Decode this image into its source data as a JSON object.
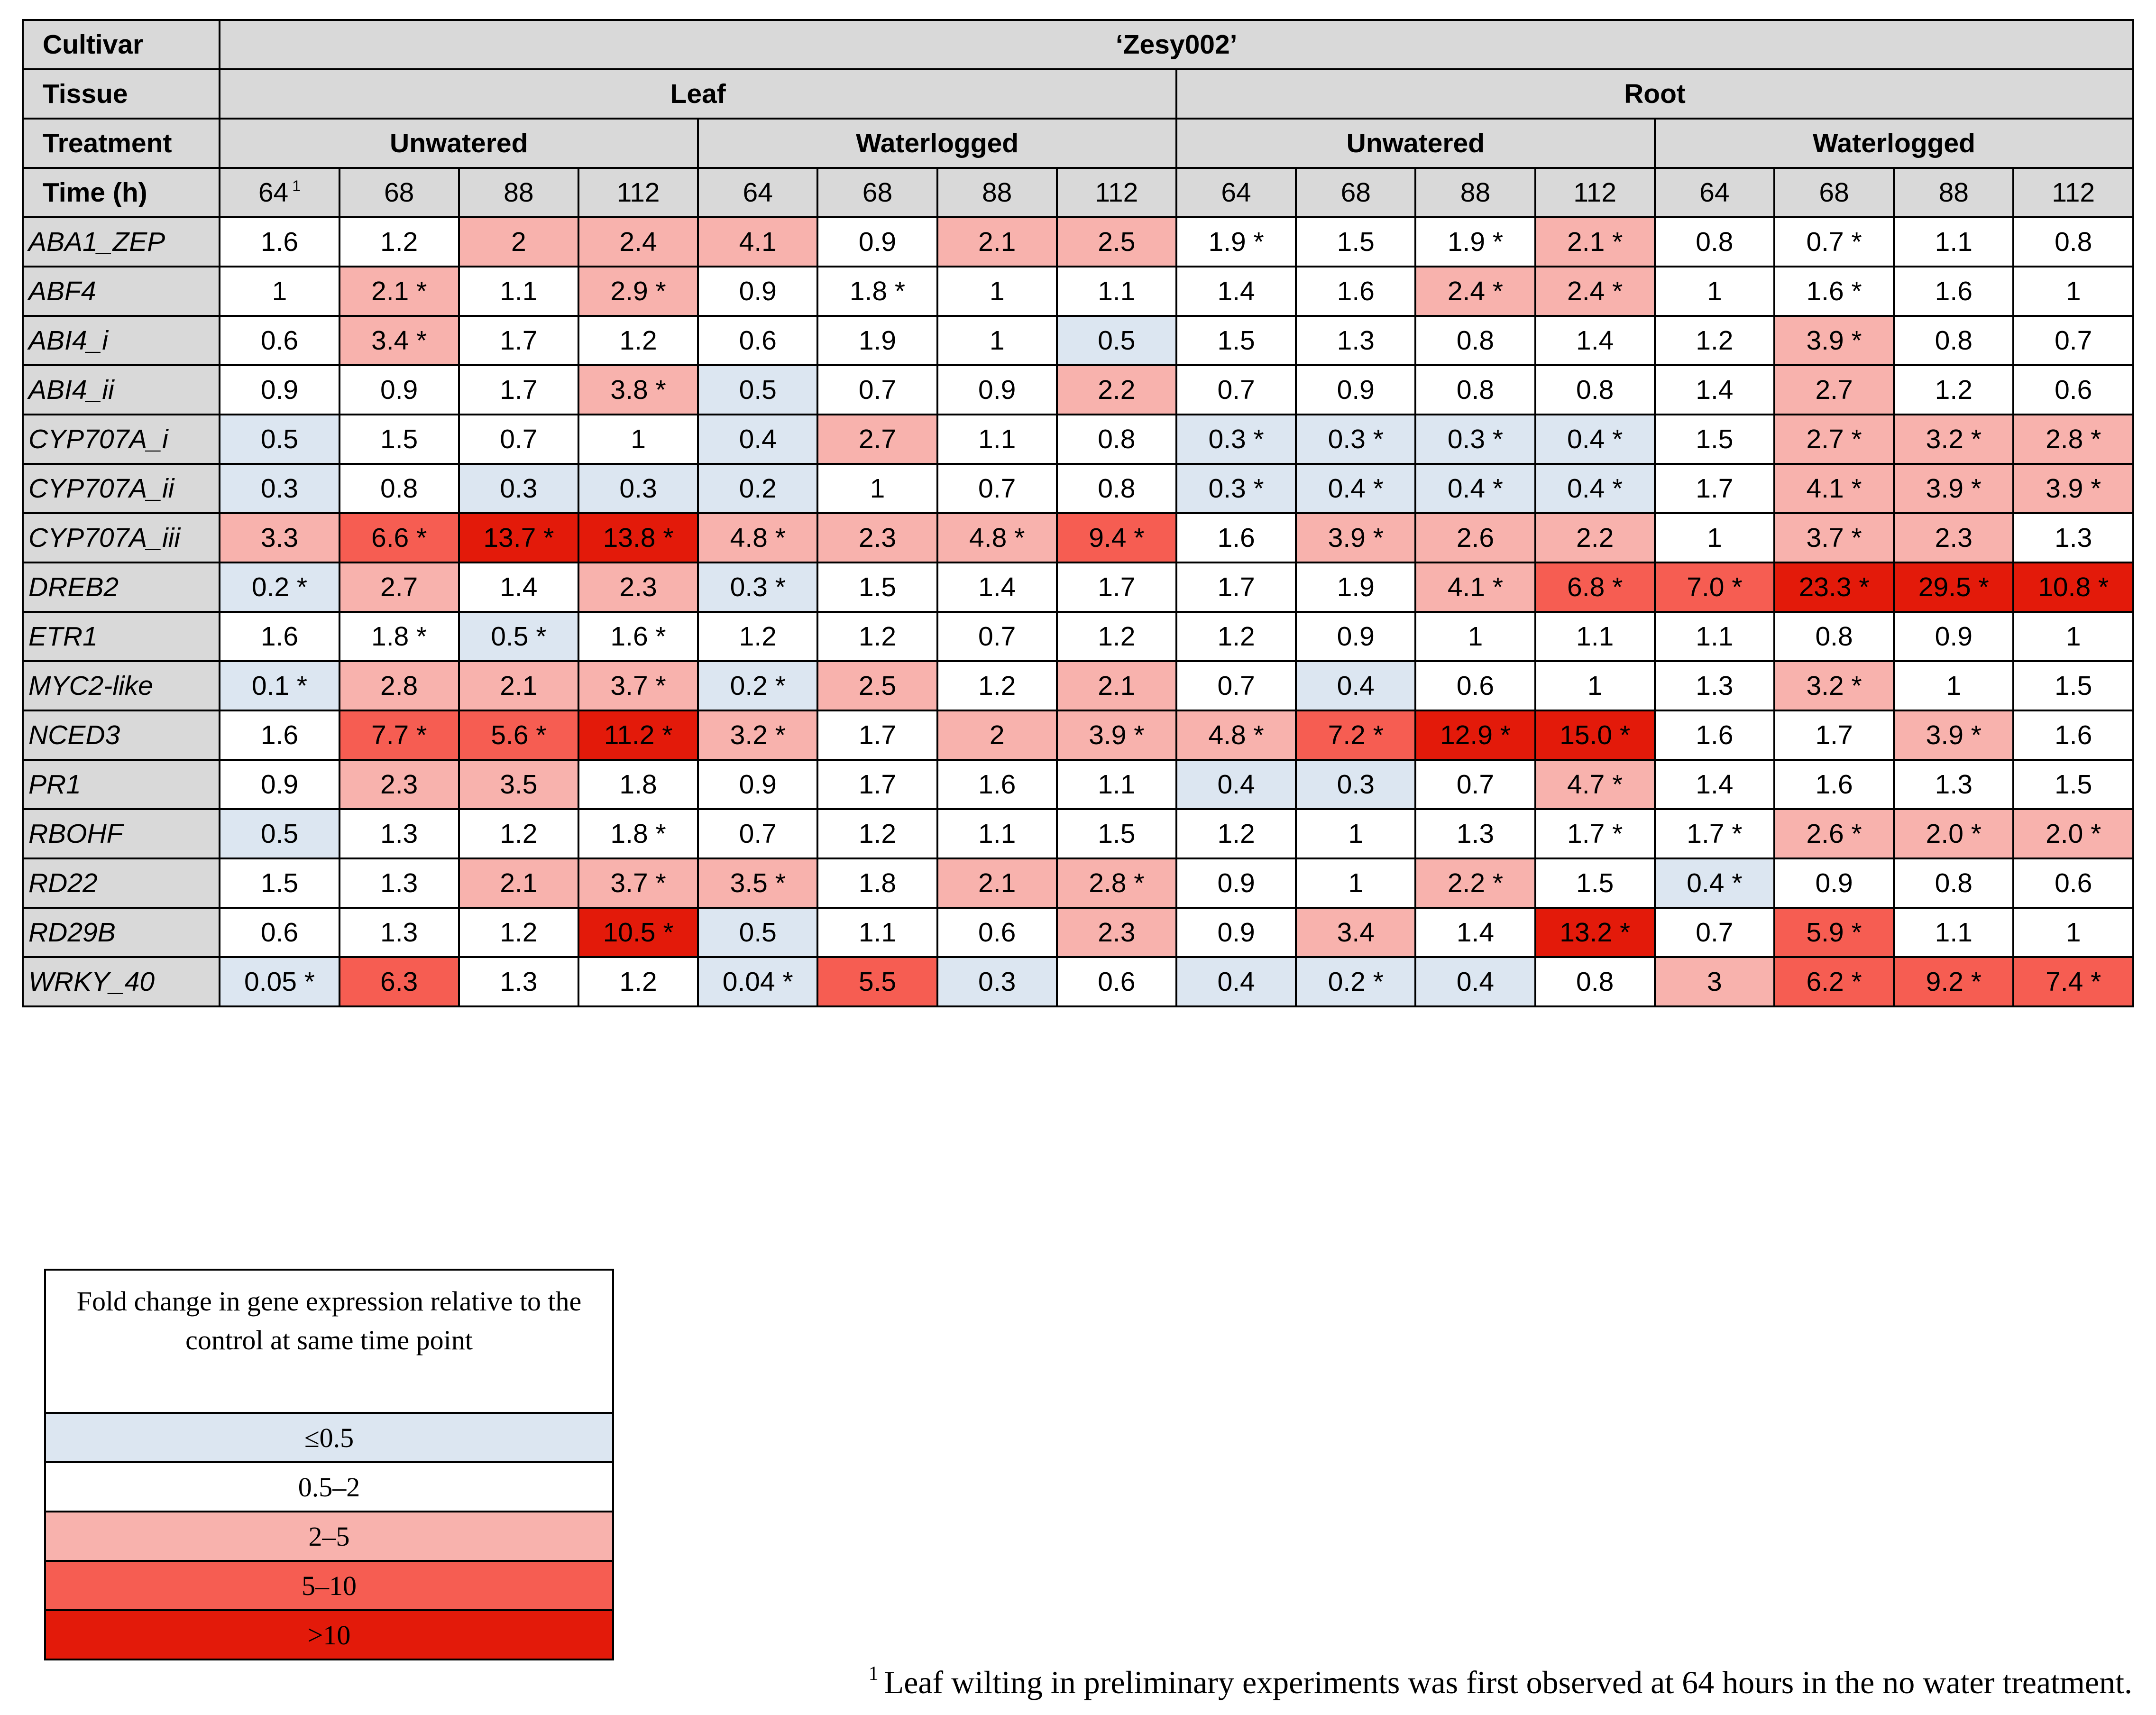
{
  "header": {
    "cultivar_label": "Cultivar",
    "cultivar_value": "‘Zesy002’",
    "tissue_label": "Tissue",
    "tissues": [
      "Leaf",
      "Root"
    ],
    "treatment_label": "Treatment",
    "treatments": [
      "Unwatered",
      "Waterlogged",
      "Unwatered",
      "Waterlogged"
    ],
    "time_label": "Time (h)",
    "times": [
      "64",
      "68",
      "88",
      "112",
      "64",
      "68",
      "88",
      "112",
      "64",
      "68",
      "88",
      "112",
      "64",
      "68",
      "88",
      "112"
    ],
    "first_time_footnote_mark": "1"
  },
  "colors": {
    "low": "#dce6f1",
    "mid": "#ffffff",
    "r2to5": "#f8b2ad",
    "r5to10": "#f65d52",
    "gt10": "#e31a0a",
    "header_gray": "#d9d9d9"
  },
  "rows": [
    {
      "gene": "ABA1_ZEP",
      "cells": [
        {
          "v": "1.6",
          "c": "mid"
        },
        {
          "v": "1.2",
          "c": "mid"
        },
        {
          "v": "2",
          "c": "2to5"
        },
        {
          "v": "2.4",
          "c": "2to5"
        },
        {
          "v": "4.1",
          "c": "2to5"
        },
        {
          "v": "0.9",
          "c": "mid"
        },
        {
          "v": "2.1",
          "c": "2to5"
        },
        {
          "v": "2.5",
          "c": "2to5"
        },
        {
          "v": "1.9 *",
          "c": "mid"
        },
        {
          "v": "1.5",
          "c": "mid"
        },
        {
          "v": "1.9 *",
          "c": "mid"
        },
        {
          "v": "2.1 *",
          "c": "2to5"
        },
        {
          "v": "0.8",
          "c": "mid"
        },
        {
          "v": "0.7 *",
          "c": "mid"
        },
        {
          "v": "1.1",
          "c": "mid"
        },
        {
          "v": "0.8",
          "c": "mid"
        }
      ]
    },
    {
      "gene": "ABF4",
      "cells": [
        {
          "v": "1",
          "c": "mid"
        },
        {
          "v": "2.1 *",
          "c": "2to5"
        },
        {
          "v": "1.1",
          "c": "mid"
        },
        {
          "v": "2.9 *",
          "c": "2to5"
        },
        {
          "v": "0.9",
          "c": "mid"
        },
        {
          "v": "1.8 *",
          "c": "mid"
        },
        {
          "v": "1",
          "c": "mid"
        },
        {
          "v": "1.1",
          "c": "mid"
        },
        {
          "v": "1.4",
          "c": "mid"
        },
        {
          "v": "1.6",
          "c": "mid"
        },
        {
          "v": "2.4 *",
          "c": "2to5"
        },
        {
          "v": "2.4 *",
          "c": "2to5"
        },
        {
          "v": "1",
          "c": "mid"
        },
        {
          "v": "1.6 *",
          "c": "mid"
        },
        {
          "v": "1.6",
          "c": "mid"
        },
        {
          "v": "1",
          "c": "mid"
        }
      ]
    },
    {
      "gene": "ABI4_i",
      "cells": [
        {
          "v": "0.6",
          "c": "mid"
        },
        {
          "v": "3.4 *",
          "c": "2to5"
        },
        {
          "v": "1.7",
          "c": "mid"
        },
        {
          "v": "1.2",
          "c": "mid"
        },
        {
          "v": "0.6",
          "c": "mid"
        },
        {
          "v": "1.9",
          "c": "mid"
        },
        {
          "v": "1",
          "c": "mid"
        },
        {
          "v": "0.5",
          "c": "low"
        },
        {
          "v": "1.5",
          "c": "mid"
        },
        {
          "v": "1.3",
          "c": "mid"
        },
        {
          "v": "0.8",
          "c": "mid"
        },
        {
          "v": "1.4",
          "c": "mid"
        },
        {
          "v": "1.2",
          "c": "mid"
        },
        {
          "v": "3.9 *",
          "c": "2to5"
        },
        {
          "v": "0.8",
          "c": "mid"
        },
        {
          "v": "0.7",
          "c": "mid"
        }
      ]
    },
    {
      "gene": "ABI4_ii",
      "cells": [
        {
          "v": "0.9",
          "c": "mid"
        },
        {
          "v": "0.9",
          "c": "mid"
        },
        {
          "v": "1.7",
          "c": "mid"
        },
        {
          "v": "3.8 *",
          "c": "2to5"
        },
        {
          "v": "0.5",
          "c": "low"
        },
        {
          "v": "0.7",
          "c": "mid"
        },
        {
          "v": "0.9",
          "c": "mid"
        },
        {
          "v": "2.2",
          "c": "2to5"
        },
        {
          "v": "0.7",
          "c": "mid"
        },
        {
          "v": "0.9",
          "c": "mid"
        },
        {
          "v": "0.8",
          "c": "mid"
        },
        {
          "v": "0.8",
          "c": "mid"
        },
        {
          "v": "1.4",
          "c": "mid"
        },
        {
          "v": "2.7",
          "c": "2to5"
        },
        {
          "v": "1.2",
          "c": "mid"
        },
        {
          "v": "0.6",
          "c": "mid"
        }
      ]
    },
    {
      "gene": "CYP707A_i",
      "cells": [
        {
          "v": "0.5",
          "c": "low"
        },
        {
          "v": "1.5",
          "c": "mid"
        },
        {
          "v": "0.7",
          "c": "mid"
        },
        {
          "v": "1",
          "c": "mid"
        },
        {
          "v": "0.4",
          "c": "low"
        },
        {
          "v": "2.7",
          "c": "2to5"
        },
        {
          "v": "1.1",
          "c": "mid"
        },
        {
          "v": "0.8",
          "c": "mid"
        },
        {
          "v": "0.3 *",
          "c": "low"
        },
        {
          "v": "0.3 *",
          "c": "low"
        },
        {
          "v": "0.3 *",
          "c": "low"
        },
        {
          "v": "0.4 *",
          "c": "low"
        },
        {
          "v": "1.5",
          "c": "mid"
        },
        {
          "v": "2.7 *",
          "c": "2to5"
        },
        {
          "v": "3.2 *",
          "c": "2to5"
        },
        {
          "v": "2.8 *",
          "c": "2to5"
        }
      ]
    },
    {
      "gene": "CYP707A_ii",
      "cells": [
        {
          "v": "0.3",
          "c": "low"
        },
        {
          "v": "0.8",
          "c": "mid"
        },
        {
          "v": "0.3",
          "c": "low"
        },
        {
          "v": "0.3",
          "c": "low"
        },
        {
          "v": "0.2",
          "c": "low"
        },
        {
          "v": "1",
          "c": "mid"
        },
        {
          "v": "0.7",
          "c": "mid"
        },
        {
          "v": "0.8",
          "c": "mid"
        },
        {
          "v": "0.3 *",
          "c": "low"
        },
        {
          "v": "0.4 *",
          "c": "low"
        },
        {
          "v": "0.4 *",
          "c": "low"
        },
        {
          "v": "0.4 *",
          "c": "low"
        },
        {
          "v": "1.7",
          "c": "mid"
        },
        {
          "v": "4.1 *",
          "c": "2to5"
        },
        {
          "v": "3.9 *",
          "c": "2to5"
        },
        {
          "v": "3.9 *",
          "c": "2to5"
        }
      ]
    },
    {
      "gene": "CYP707A_iii",
      "tall": true,
      "cells": [
        {
          "v": "3.3",
          "c": "2to5"
        },
        {
          "v": "6.6 *",
          "c": "5to10"
        },
        {
          "v": "13.7 *",
          "c": "gt10"
        },
        {
          "v": "13.8 *",
          "c": "gt10"
        },
        {
          "v": "4.8 *",
          "c": "2to5"
        },
        {
          "v": "2.3",
          "c": "2to5"
        },
        {
          "v": "4.8 *",
          "c": "2to5"
        },
        {
          "v": "9.4 *",
          "c": "5to10"
        },
        {
          "v": "1.6",
          "c": "mid"
        },
        {
          "v": "3.9 *",
          "c": "2to5"
        },
        {
          "v": "2.6",
          "c": "2to5"
        },
        {
          "v": "2.2",
          "c": "2to5"
        },
        {
          "v": "1",
          "c": "mid"
        },
        {
          "v": "3.7 *",
          "c": "2to5"
        },
        {
          "v": "2.3",
          "c": "2to5"
        },
        {
          "v": "1.3",
          "c": "mid"
        }
      ]
    },
    {
      "gene": "DREB2",
      "tall": true,
      "cells": [
        {
          "v": "0.2 *",
          "c": "low"
        },
        {
          "v": "2.7",
          "c": "2to5"
        },
        {
          "v": "1.4",
          "c": "mid"
        },
        {
          "v": "2.3",
          "c": "2to5"
        },
        {
          "v": "0.3 *",
          "c": "low"
        },
        {
          "v": "1.5",
          "c": "mid"
        },
        {
          "v": "1.4",
          "c": "mid"
        },
        {
          "v": "1.7",
          "c": "mid"
        },
        {
          "v": "1.7",
          "c": "mid"
        },
        {
          "v": "1.9",
          "c": "mid"
        },
        {
          "v": "4.1 *",
          "c": "2to5"
        },
        {
          "v": "6.8 *",
          "c": "5to10"
        },
        {
          "v": "7.0 *",
          "c": "5to10"
        },
        {
          "v": "23.3 *",
          "c": "gt10"
        },
        {
          "v": "29.5 *",
          "c": "gt10"
        },
        {
          "v": "10.8 *",
          "c": "gt10"
        }
      ]
    },
    {
      "gene": "ETR1",
      "cells": [
        {
          "v": "1.6",
          "c": "mid"
        },
        {
          "v": "1.8 *",
          "c": "mid"
        },
        {
          "v": "0.5 *",
          "c": "low"
        },
        {
          "v": "1.6 *",
          "c": "mid"
        },
        {
          "v": "1.2",
          "c": "mid"
        },
        {
          "v": "1.2",
          "c": "mid"
        },
        {
          "v": "0.7",
          "c": "mid"
        },
        {
          "v": "1.2",
          "c": "mid"
        },
        {
          "v": "1.2",
          "c": "mid"
        },
        {
          "v": "0.9",
          "c": "mid"
        },
        {
          "v": "1",
          "c": "mid"
        },
        {
          "v": "1.1",
          "c": "mid"
        },
        {
          "v": "1.1",
          "c": "mid"
        },
        {
          "v": "0.8",
          "c": "mid"
        },
        {
          "v": "0.9",
          "c": "mid"
        },
        {
          "v": "1",
          "c": "mid"
        }
      ]
    },
    {
      "gene": "MYC2-like",
      "tall": true,
      "cells": [
        {
          "v": "0.1 *",
          "c": "low"
        },
        {
          "v": "2.8",
          "c": "2to5"
        },
        {
          "v": "2.1",
          "c": "2to5"
        },
        {
          "v": "3.7 *",
          "c": "2to5"
        },
        {
          "v": "0.2 *",
          "c": "low"
        },
        {
          "v": "2.5",
          "c": "2to5"
        },
        {
          "v": "1.2",
          "c": "mid"
        },
        {
          "v": "2.1",
          "c": "2to5"
        },
        {
          "v": "0.7",
          "c": "mid"
        },
        {
          "v": "0.4",
          "c": "low"
        },
        {
          "v": "0.6",
          "c": "mid"
        },
        {
          "v": "1",
          "c": "mid"
        },
        {
          "v": "1.3",
          "c": "mid"
        },
        {
          "v": "3.2 *",
          "c": "2to5"
        },
        {
          "v": "1",
          "c": "mid"
        },
        {
          "v": "1.5",
          "c": "mid"
        }
      ]
    },
    {
      "gene": "NCED3",
      "tall": true,
      "cells": [
        {
          "v": "1.6",
          "c": "mid"
        },
        {
          "v": "7.7 *",
          "c": "5to10"
        },
        {
          "v": "5.6 *",
          "c": "5to10"
        },
        {
          "v": "11.2 *",
          "c": "gt10"
        },
        {
          "v": "3.2 *",
          "c": "2to5"
        },
        {
          "v": "1.7",
          "c": "mid"
        },
        {
          "v": "2",
          "c": "2to5"
        },
        {
          "v": "3.9 *",
          "c": "2to5"
        },
        {
          "v": "4.8 *",
          "c": "2to5"
        },
        {
          "v": "7.2 *",
          "c": "5to10"
        },
        {
          "v": "12.9 *",
          "c": "gt10"
        },
        {
          "v": "15.0 *",
          "c": "gt10"
        },
        {
          "v": "1.6",
          "c": "mid"
        },
        {
          "v": "1.7",
          "c": "mid"
        },
        {
          "v": "3.9 *",
          "c": "2to5"
        },
        {
          "v": "1.6",
          "c": "mid"
        }
      ]
    },
    {
      "gene": "PR1",
      "cells": [
        {
          "v": "0.9",
          "c": "mid"
        },
        {
          "v": "2.3",
          "c": "2to5"
        },
        {
          "v": "3.5",
          "c": "2to5"
        },
        {
          "v": "1.8",
          "c": "mid"
        },
        {
          "v": "0.9",
          "c": "mid"
        },
        {
          "v": "1.7",
          "c": "mid"
        },
        {
          "v": "1.6",
          "c": "mid"
        },
        {
          "v": "1.1",
          "c": "mid"
        },
        {
          "v": "0.4",
          "c": "low"
        },
        {
          "v": "0.3",
          "c": "low"
        },
        {
          "v": "0.7",
          "c": "mid"
        },
        {
          "v": "4.7 *",
          "c": "2to5"
        },
        {
          "v": "1.4",
          "c": "mid"
        },
        {
          "v": "1.6",
          "c": "mid"
        },
        {
          "v": "1.3",
          "c": "mid"
        },
        {
          "v": "1.5",
          "c": "mid"
        }
      ]
    },
    {
      "gene": "RBOHF",
      "cells": [
        {
          "v": "0.5",
          "c": "low"
        },
        {
          "v": "1.3",
          "c": "mid"
        },
        {
          "v": "1.2",
          "c": "mid"
        },
        {
          "v": "1.8 *",
          "c": "mid"
        },
        {
          "v": "0.7",
          "c": "mid"
        },
        {
          "v": "1.2",
          "c": "mid"
        },
        {
          "v": "1.1",
          "c": "mid"
        },
        {
          "v": "1.5",
          "c": "mid"
        },
        {
          "v": "1.2",
          "c": "mid"
        },
        {
          "v": "1",
          "c": "mid"
        },
        {
          "v": "1.3",
          "c": "mid"
        },
        {
          "v": "1.7 *",
          "c": "mid"
        },
        {
          "v": "1.7 *",
          "c": "mid"
        },
        {
          "v": "2.6 *",
          "c": "2to5"
        },
        {
          "v": "2.0 *",
          "c": "2to5"
        },
        {
          "v": "2.0 *",
          "c": "2to5"
        }
      ]
    },
    {
      "gene": "RD22",
      "tall": true,
      "cells": [
        {
          "v": "1.5",
          "c": "mid"
        },
        {
          "v": "1.3",
          "c": "mid"
        },
        {
          "v": "2.1",
          "c": "2to5"
        },
        {
          "v": "3.7 *",
          "c": "2to5"
        },
        {
          "v": "3.5 *",
          "c": "2to5"
        },
        {
          "v": "1.8",
          "c": "mid"
        },
        {
          "v": "2.1",
          "c": "2to5"
        },
        {
          "v": "2.8 *",
          "c": "2to5"
        },
        {
          "v": "0.9",
          "c": "mid"
        },
        {
          "v": "1",
          "c": "mid"
        },
        {
          "v": "2.2 *",
          "c": "2to5"
        },
        {
          "v": "1.5",
          "c": "mid"
        },
        {
          "v": "0.4 *",
          "c": "low"
        },
        {
          "v": "0.9",
          "c": "mid"
        },
        {
          "v": "0.8",
          "c": "mid"
        },
        {
          "v": "0.6",
          "c": "mid"
        }
      ]
    },
    {
      "gene": "RD29B",
      "tall": true,
      "cells": [
        {
          "v": "0.6",
          "c": "mid"
        },
        {
          "v": "1.3",
          "c": "mid"
        },
        {
          "v": "1.2",
          "c": "mid"
        },
        {
          "v": "10.5 *",
          "c": "gt10"
        },
        {
          "v": "0.5",
          "c": "low"
        },
        {
          "v": "1.1",
          "c": "mid"
        },
        {
          "v": "0.6",
          "c": "mid"
        },
        {
          "v": "2.3",
          "c": "2to5"
        },
        {
          "v": "0.9",
          "c": "mid"
        },
        {
          "v": "3.4",
          "c": "2to5"
        },
        {
          "v": "1.4",
          "c": "mid"
        },
        {
          "v": "13.2 *",
          "c": "gt10"
        },
        {
          "v": "0.7",
          "c": "mid"
        },
        {
          "v": "5.9 *",
          "c": "5to10"
        },
        {
          "v": "1.1",
          "c": "mid"
        },
        {
          "v": "1",
          "c": "mid"
        }
      ]
    },
    {
      "gene": "WRKY_40",
      "tall": true,
      "cells": [
        {
          "v": "0.05 *",
          "c": "low"
        },
        {
          "v": "6.3",
          "c": "5to10"
        },
        {
          "v": "1.3",
          "c": "mid"
        },
        {
          "v": "1.2",
          "c": "mid"
        },
        {
          "v": "0.04 *",
          "c": "low"
        },
        {
          "v": "5.5",
          "c": "5to10"
        },
        {
          "v": "0.3",
          "c": "low"
        },
        {
          "v": "0.6",
          "c": "mid"
        },
        {
          "v": "0.4",
          "c": "low"
        },
        {
          "v": "0.2 *",
          "c": "low"
        },
        {
          "v": "0.4",
          "c": "low"
        },
        {
          "v": "0.8",
          "c": "mid"
        },
        {
          "v": "3",
          "c": "2to5"
        },
        {
          "v": "6.2 *",
          "c": "5to10"
        },
        {
          "v": "9.2 *",
          "c": "5to10"
        },
        {
          "v": "7.4 *",
          "c": "5to10"
        }
      ]
    }
  ],
  "legend": {
    "title": "Fold change in gene expression relative to the control at same time point",
    "items": [
      {
        "label": "≤0.5",
        "c": "low"
      },
      {
        "label": "0.5–2",
        "c": "mid"
      },
      {
        "label": "2–5",
        "c": "2to5"
      },
      {
        "label": "5–10",
        "c": "5to10"
      },
      {
        "label": ">10",
        "c": "gt10"
      }
    ]
  },
  "footnote": {
    "mark": "1",
    "text": "Leaf wilting in preliminary experiments was first observed at 64 hours in the no water treatment."
  }
}
